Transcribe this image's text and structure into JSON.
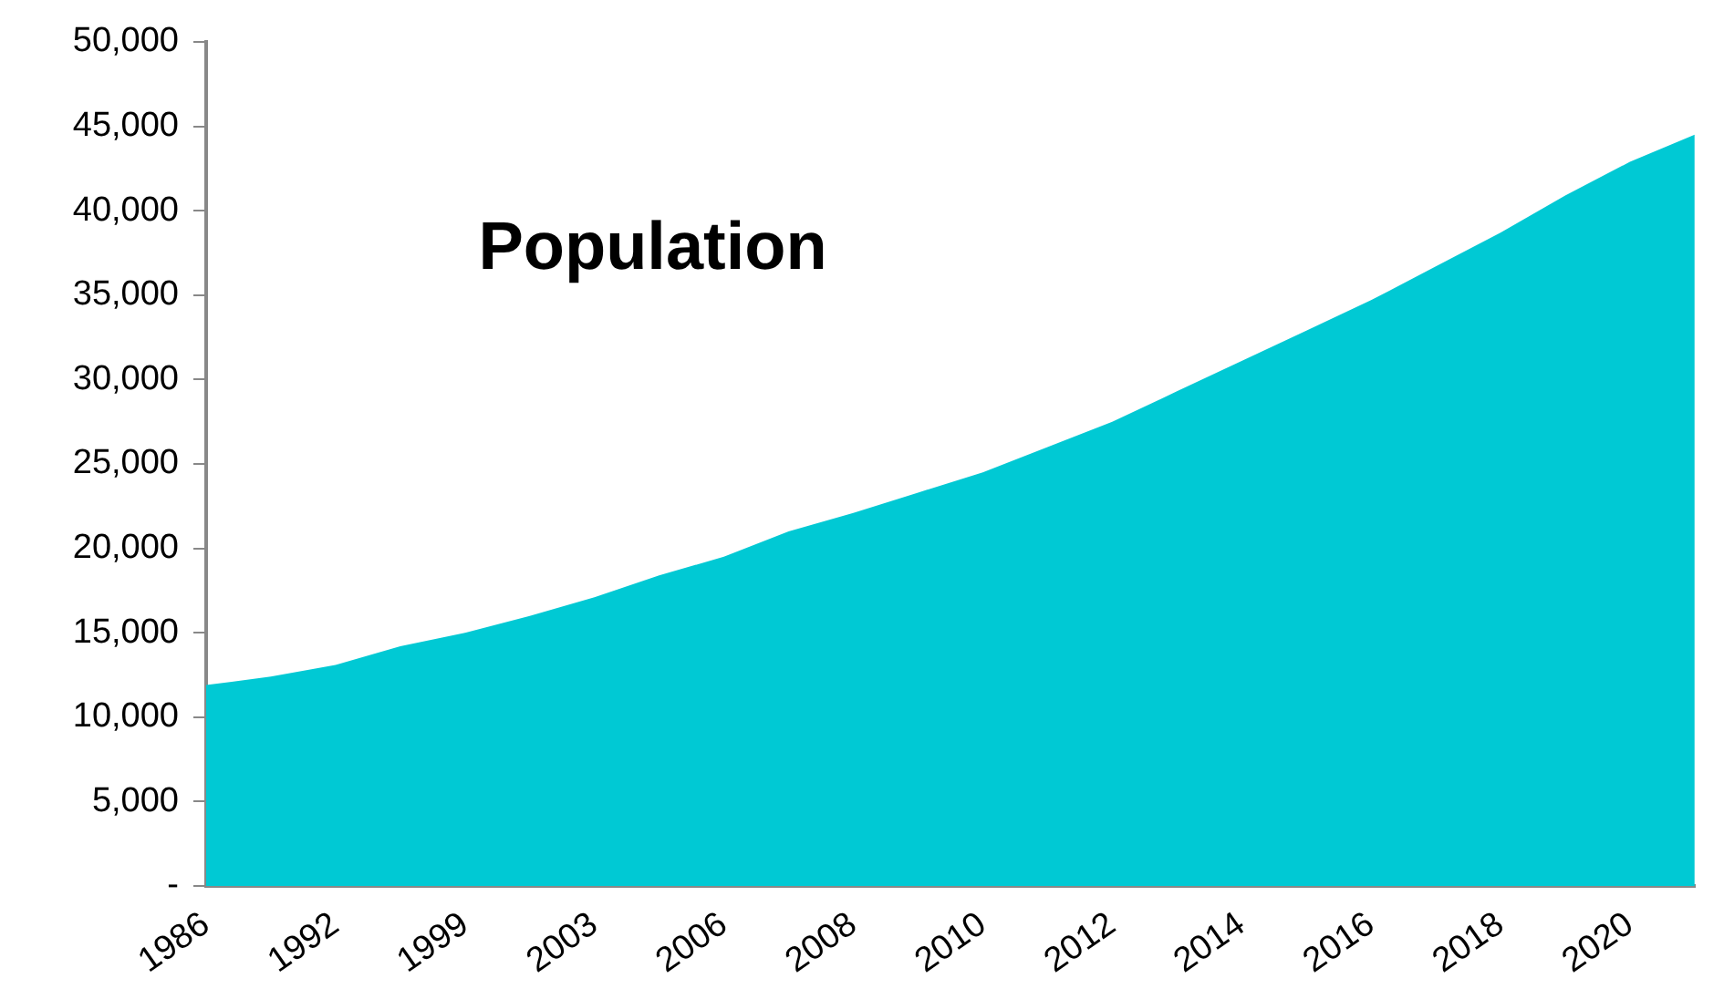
{
  "chart_data": {
    "type": "area",
    "title": "Population",
    "categories": [
      "1986",
      null,
      "1992",
      null,
      "1999",
      null,
      "2003",
      null,
      "2006",
      null,
      "2008",
      null,
      "2010",
      null,
      "2012",
      null,
      "2014",
      null,
      "2016",
      null,
      "2018",
      null,
      "2020",
      null
    ],
    "values": [
      11900,
      12400,
      13100,
      14200,
      15000,
      16000,
      17100,
      18400,
      19500,
      21000,
      22100,
      23300,
      24500,
      26000,
      27500,
      29300,
      31100,
      32900,
      34700,
      36700,
      38700,
      40900,
      42900,
      44500
    ],
    "color": "#00c9d4",
    "ylim": [
      0,
      50000
    ],
    "yticks": [
      {
        "value": 0,
        "label": "-"
      },
      {
        "value": 5000,
        "label": "5,000"
      },
      {
        "value": 10000,
        "label": "10,000"
      },
      {
        "value": 15000,
        "label": "15,000"
      },
      {
        "value": 20000,
        "label": "20,000"
      },
      {
        "value": 25000,
        "label": "25,000"
      },
      {
        "value": 30000,
        "label": "30,000"
      },
      {
        "value": 35000,
        "label": "35,000"
      },
      {
        "value": 40000,
        "label": "40,000"
      },
      {
        "value": 45000,
        "label": "45,000"
      },
      {
        "value": 50000,
        "label": "50,000"
      }
    ],
    "grid": false,
    "legend": false
  }
}
